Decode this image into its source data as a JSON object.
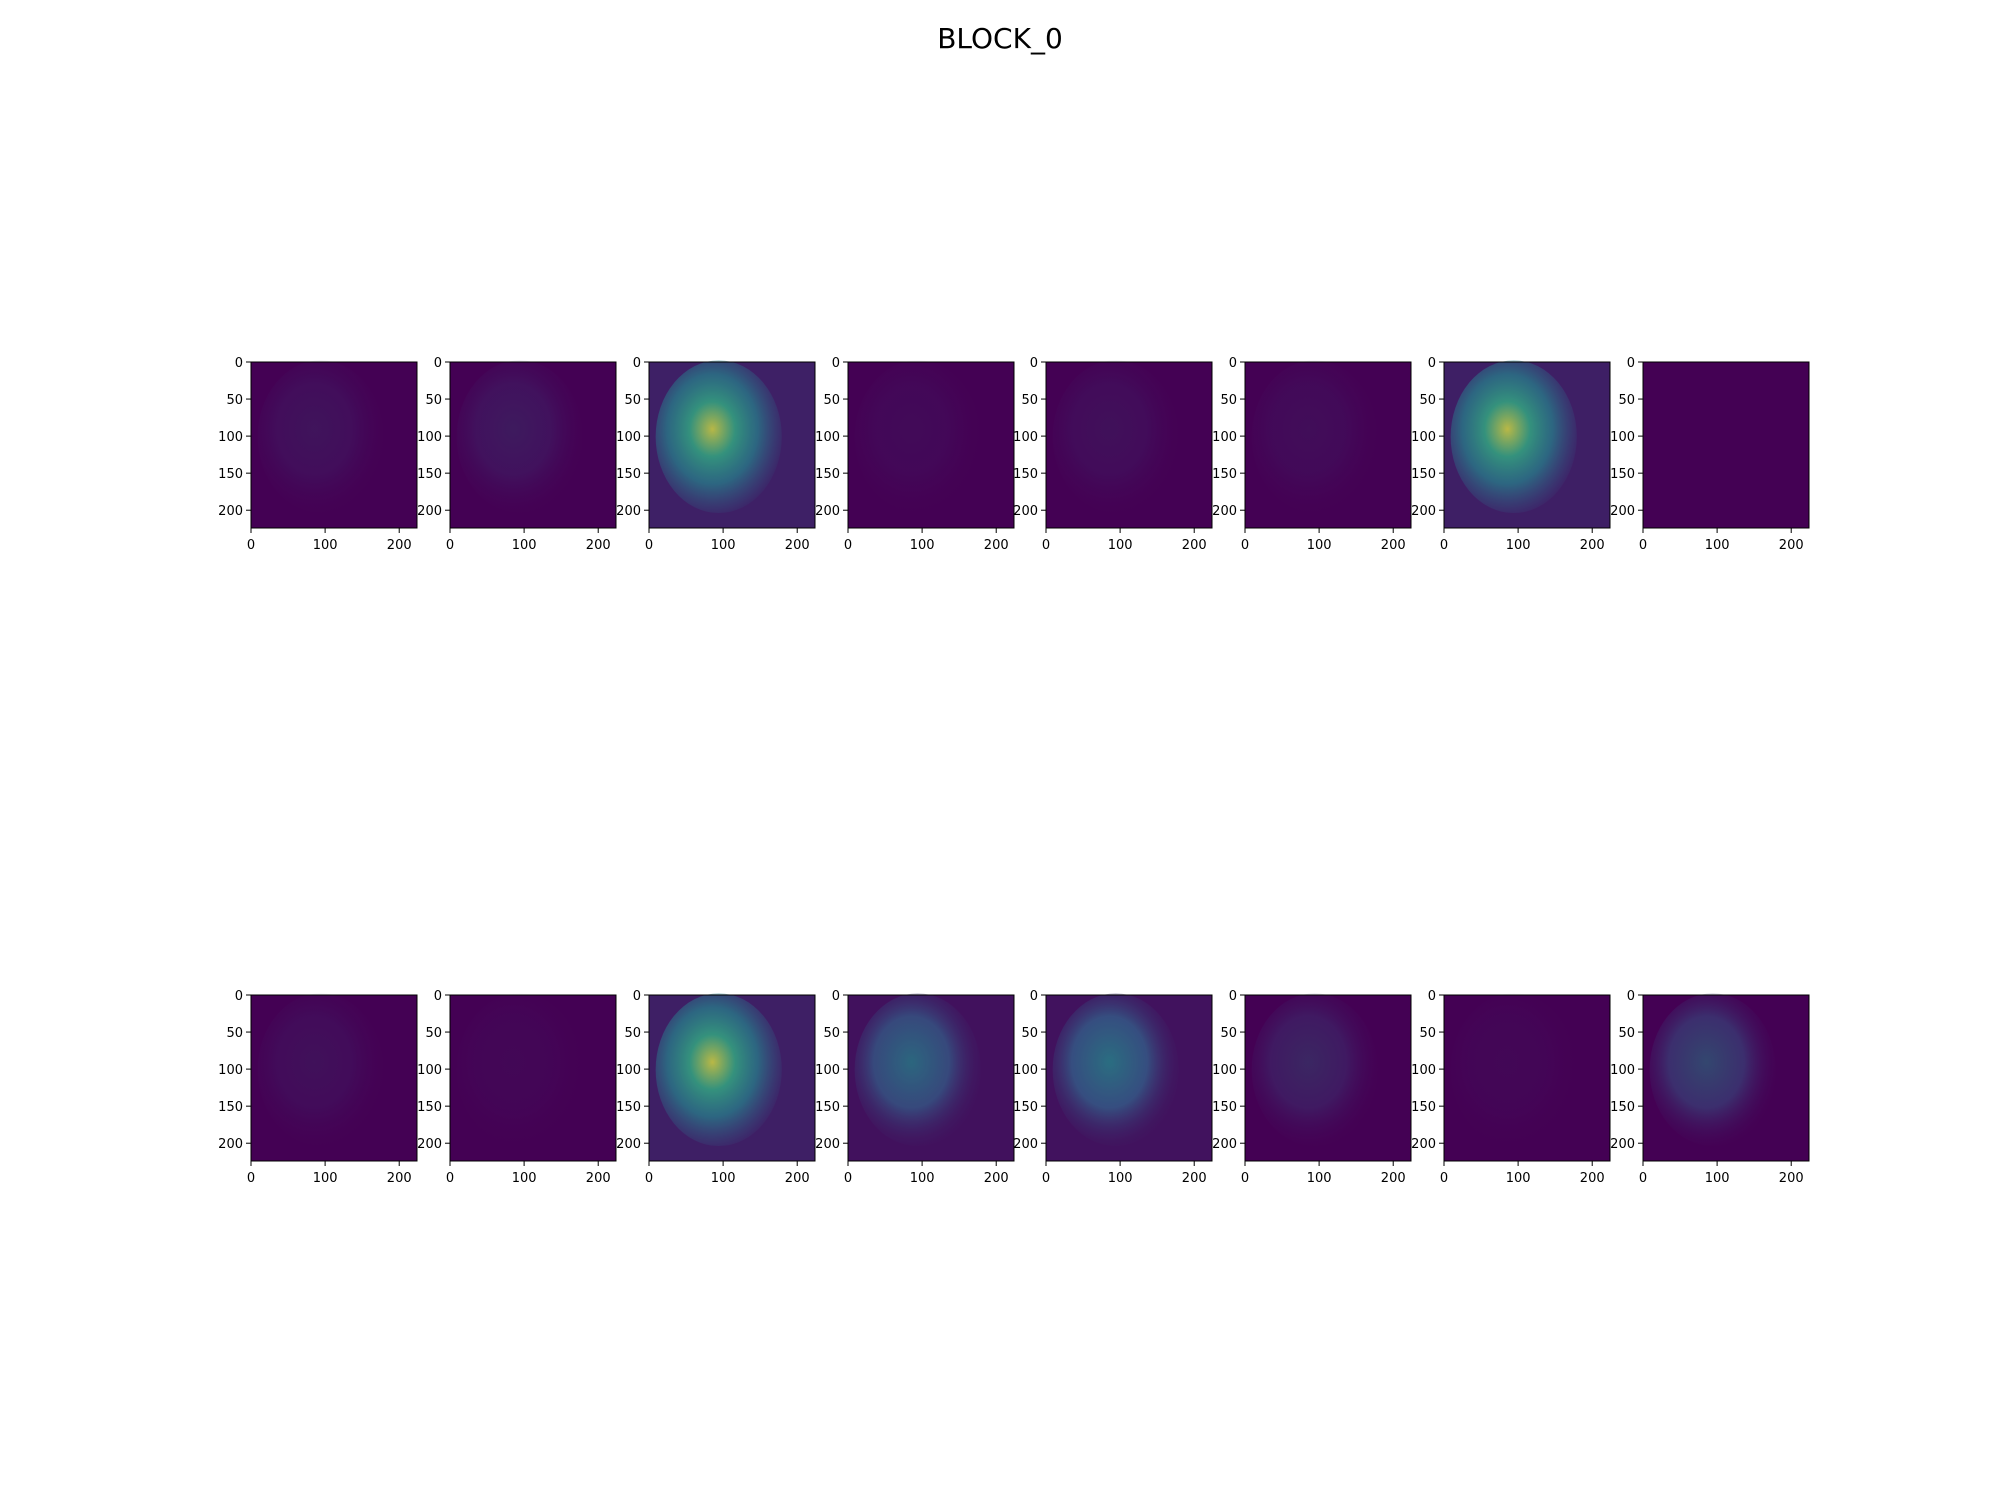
{
  "title": "BLOCK_0",
  "colormap": {
    "low": "#440154",
    "mid": "#31688e",
    "mid2": "#21918c",
    "high": "#35b779",
    "max": "#fde725"
  },
  "chart_data": {
    "type": "heatmap",
    "title": "BLOCK_0",
    "layout": {
      "rows": 2,
      "cols": 8
    },
    "grid": false,
    "legend": "none",
    "axes_common": {
      "xlim": [
        0,
        224
      ],
      "ylim": [
        224,
        0
      ],
      "xticks": [
        0,
        100,
        200
      ],
      "yticks": [
        0,
        50,
        100,
        150,
        200
      ]
    },
    "panels": [
      {
        "row": 0,
        "col": 0,
        "brightness": 0.06
      },
      {
        "row": 0,
        "col": 1,
        "brightness": 0.08
      },
      {
        "row": 0,
        "col": 2,
        "brightness": 0.62
      },
      {
        "row": 0,
        "col": 3,
        "brightness": 0.03
      },
      {
        "row": 0,
        "col": 4,
        "brightness": 0.05
      },
      {
        "row": 0,
        "col": 5,
        "brightness": 0.04
      },
      {
        "row": 0,
        "col": 6,
        "brightness": 0.6
      },
      {
        "row": 0,
        "col": 7,
        "brightness": 0.01
      },
      {
        "row": 1,
        "col": 0,
        "brightness": 0.05
      },
      {
        "row": 1,
        "col": 1,
        "brightness": 0.02
      },
      {
        "row": 1,
        "col": 2,
        "brightness": 0.6
      },
      {
        "row": 1,
        "col": 3,
        "brightness": 0.32
      },
      {
        "row": 1,
        "col": 4,
        "brightness": 0.35
      },
      {
        "row": 1,
        "col": 5,
        "brightness": 0.12
      },
      {
        "row": 1,
        "col": 6,
        "brightness": 0.02
      },
      {
        "row": 1,
        "col": 7,
        "brightness": 0.22
      }
    ]
  }
}
